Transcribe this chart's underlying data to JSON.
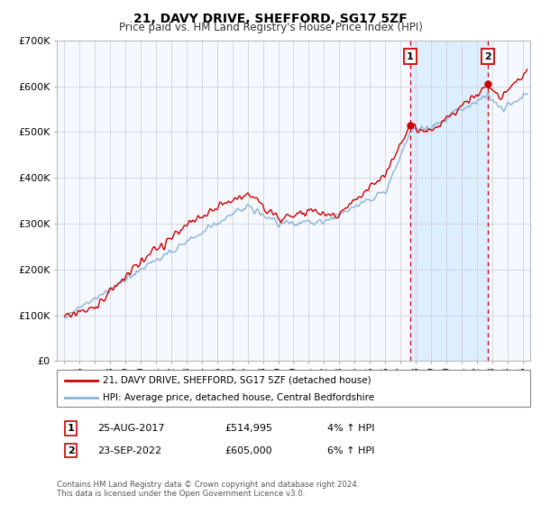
{
  "title": "21, DAVY DRIVE, SHEFFORD, SG17 5ZF",
  "subtitle": "Price paid vs. HM Land Registry's House Price Index (HPI)",
  "legend_line1": "21, DAVY DRIVE, SHEFFORD, SG17 5ZF (detached house)",
  "legend_line2": "HPI: Average price, detached house, Central Bedfordshire",
  "annotation1_label": "1",
  "annotation1_date": "25-AUG-2017",
  "annotation1_price": "£514,995",
  "annotation1_hpi": "4% ↑ HPI",
  "annotation2_label": "2",
  "annotation2_date": "23-SEP-2022",
  "annotation2_price": "£605,000",
  "annotation2_hpi": "6% ↑ HPI",
  "footnote1": "Contains HM Land Registry data © Crown copyright and database right 2024.",
  "footnote2": "This data is licensed under the Open Government Licence v3.0.",
  "sale1_year": 2017.65,
  "sale1_value": 514995,
  "sale2_year": 2022.73,
  "sale2_value": 605000,
  "hpi_color": "#88b4d8",
  "price_color": "#cc0000",
  "sale_dot_color": "#cc0000",
  "vline_color": "#cc0000",
  "shade_color": "#ddeeff",
  "grid_color": "#cccccc",
  "background_color": "#ffffff",
  "plot_bg_color": "#f5f8ff",
  "ylim": [
    0,
    700000
  ],
  "yticks": [
    0,
    100000,
    200000,
    300000,
    400000,
    500000,
    600000,
    700000
  ],
  "ytick_labels": [
    "£0",
    "£100K",
    "£200K",
    "£300K",
    "£400K",
    "£500K",
    "£600K",
    "£700K"
  ],
  "xlim_start": 1994.5,
  "xlim_end": 2025.5,
  "title_fontsize": 10,
  "subtitle_fontsize": 8.5
}
